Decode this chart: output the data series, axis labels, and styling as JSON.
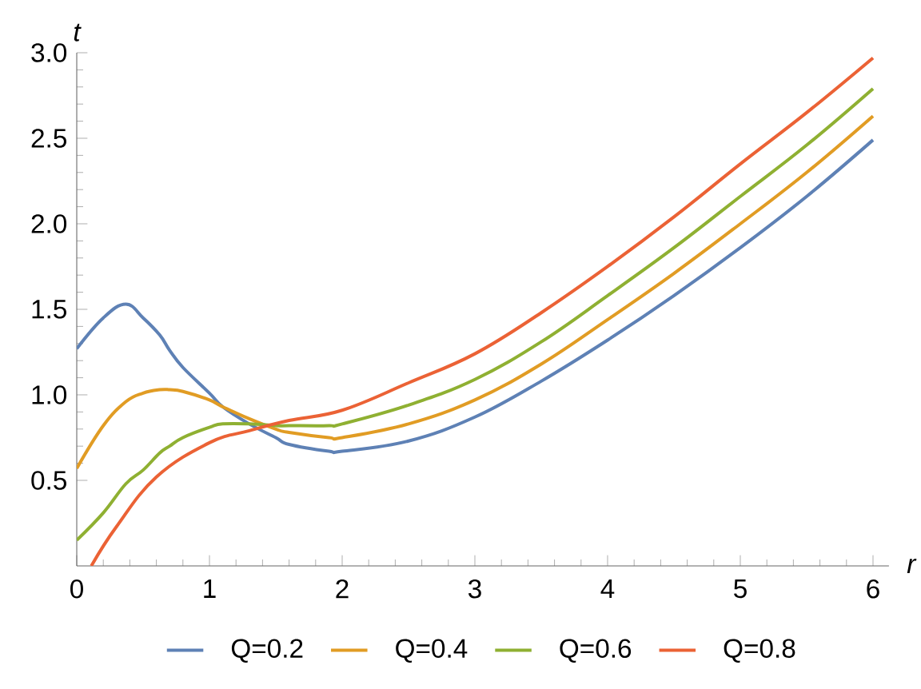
{
  "chart_data": {
    "type": "line",
    "xlabel": "r",
    "ylabel": "t",
    "x": [
      0,
      0.2,
      0.37,
      0.5,
      0.625,
      0.7,
      0.8,
      1,
      1.1,
      1.3,
      1.5,
      1.6,
      1.9,
      2,
      2.5,
      3,
      3.5,
      4,
      4.5,
      5,
      5.5,
      6
    ],
    "series": [
      {
        "name": "Q=0.2",
        "color": "#5e81b5",
        "values": [
          1.27,
          1.45,
          1.53,
          1.45,
          1.35,
          1.26,
          1.16,
          1.01,
          0.93,
          0.83,
          0.75,
          0.71,
          0.67,
          0.67,
          0.73,
          0.87,
          1.08,
          1.32,
          1.58,
          1.86,
          2.16,
          2.49
        ]
      },
      {
        "name": "Q=0.4",
        "color": "#e19c24",
        "values": [
          0.57,
          0.82,
          0.96,
          1.01,
          1.03,
          1.03,
          1.02,
          0.97,
          0.93,
          0.86,
          0.8,
          0.78,
          0.75,
          0.75,
          0.83,
          0.97,
          1.18,
          1.44,
          1.71,
          2.0,
          2.3,
          2.63
        ]
      },
      {
        "name": "Q=0.6",
        "color": "#8fb032",
        "values": [
          0.15,
          0.31,
          0.48,
          0.56,
          0.66,
          0.7,
          0.75,
          0.81,
          0.83,
          0.83,
          0.82,
          0.82,
          0.82,
          0.83,
          0.94,
          1.09,
          1.31,
          1.58,
          1.86,
          2.16,
          2.46,
          2.79
        ]
      },
      {
        "name": "Q=0.8",
        "color": "#eb6235",
        "x": [
          0.11,
          0.3,
          0.6,
          1,
          1.3,
          1.6,
          2,
          2.5,
          3,
          3.5,
          4,
          4.5,
          5,
          5.5,
          6
        ],
        "values": [
          0,
          0.23,
          0.52,
          0.72,
          0.79,
          0.85,
          0.91,
          1.07,
          1.24,
          1.48,
          1.75,
          2.04,
          2.35,
          2.65,
          2.97
        ]
      }
    ],
    "xlim": [
      0,
      6.12
    ],
    "ylim": [
      0,
      3
    ],
    "xticks": [
      0,
      1,
      2,
      3,
      4,
      5,
      6
    ],
    "yticks": [
      {
        "value": 0.5,
        "label": "0.5"
      },
      {
        "value": 1,
        "label": "1.0"
      },
      {
        "value": 1.5,
        "label": "1.5"
      },
      {
        "value": 2,
        "label": "2.0"
      },
      {
        "value": 2.5,
        "label": "2.5"
      },
      {
        "value": 3,
        "label": "3.0"
      }
    ],
    "grid": false,
    "legend": "bottom",
    "marker": "none",
    "line_style": "solid"
  }
}
